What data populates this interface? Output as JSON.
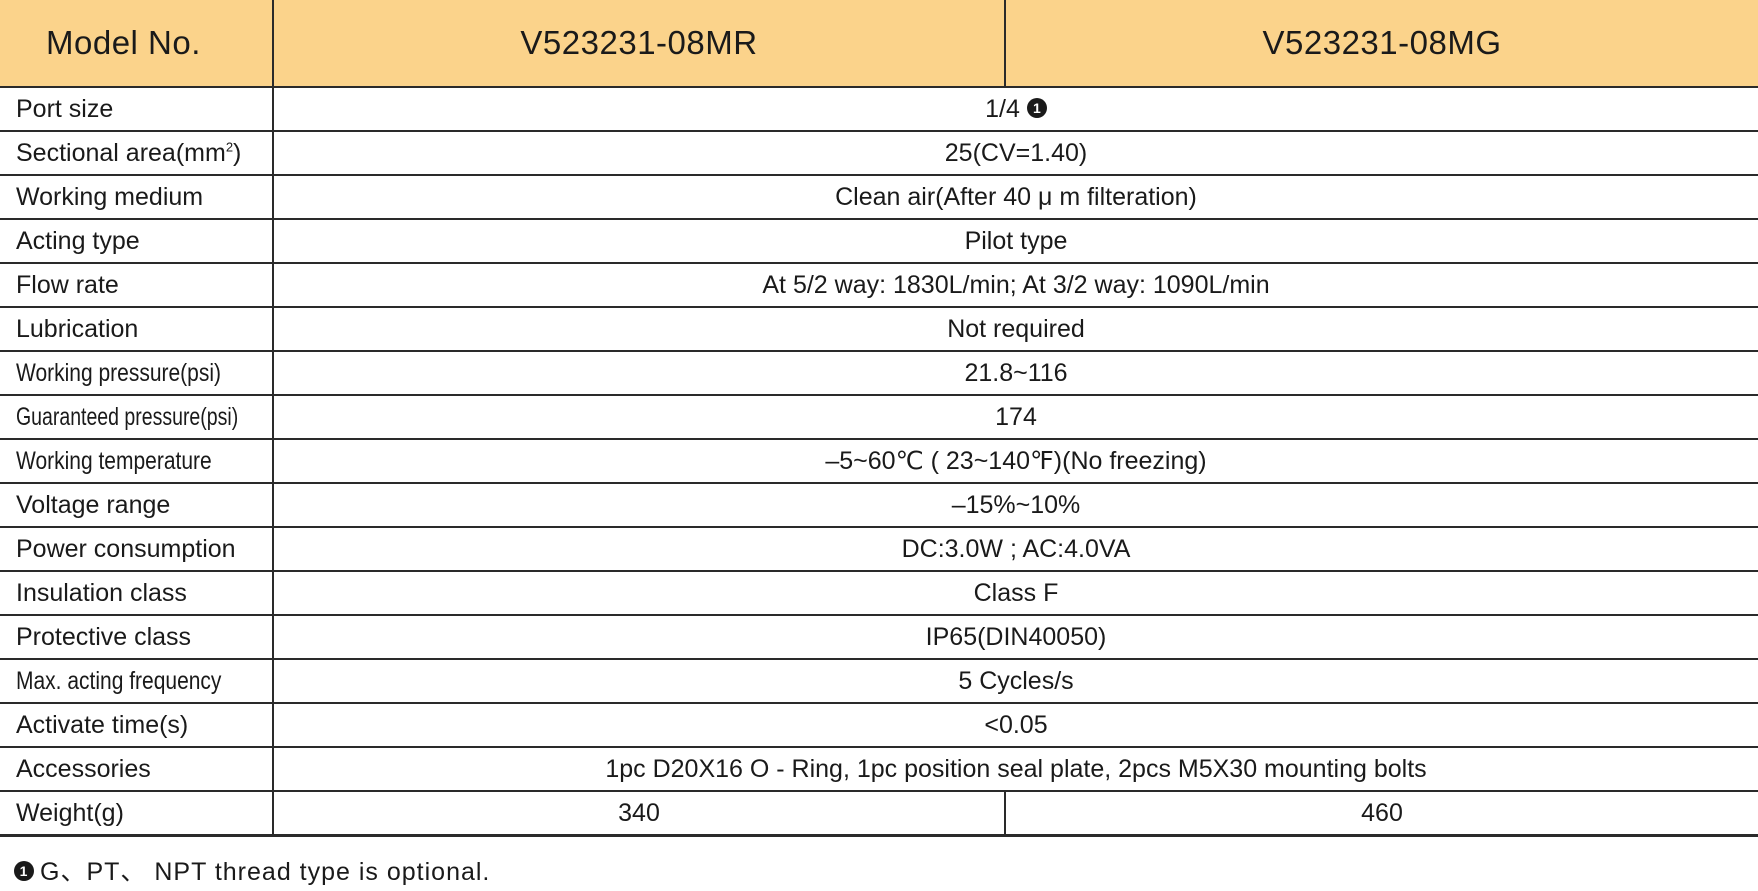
{
  "header": {
    "label": "Model No.",
    "model_a": "V523231-08MR",
    "model_b": "V523231-08MG"
  },
  "rows": [
    {
      "label": "Port size",
      "value": "1/4",
      "note_marker": "1"
    },
    {
      "label_main": "Sectional area(mm",
      "label_sup": "2",
      "label_tail": ")",
      "value": "25(CV=1.40)"
    },
    {
      "label": "Working medium",
      "value": "Clean air(After 40 μ m filteration)"
    },
    {
      "label": "Acting type",
      "value": "Pilot type"
    },
    {
      "label": "Flow rate",
      "value": "At 5/2 way: 1830L/min; At 3/2 way: 1090L/min"
    },
    {
      "label": "Lubrication",
      "value": "Not required"
    },
    {
      "label": "Working pressure(psi)",
      "value": "21.8~116"
    },
    {
      "label": "Guaranteed pressure(psi)",
      "value": "174"
    },
    {
      "label": "Working temperature",
      "value": "–5~60℃ ( 23~140℉)(No freezing)"
    },
    {
      "label": "Voltage range",
      "value": "–15%~10%"
    },
    {
      "label": "Power consumption",
      "value": "DC:3.0W ; AC:4.0VA"
    },
    {
      "label": "Insulation class",
      "value": "Class F"
    },
    {
      "label": "Protective class",
      "value": "IP65(DIN40050)"
    },
    {
      "label": "Max. acting frequency",
      "value": "5 Cycles/s"
    },
    {
      "label": "Activate time(s)",
      "value": "<0.05"
    },
    {
      "label": "Accessories",
      "value": "1pc D20X16 O - Ring, 1pc position seal plate, 2pcs M5X30 mounting bolts"
    },
    {
      "label": "Weight(g)",
      "value_a": "340",
      "value_b": "460"
    }
  ],
  "footnote": {
    "marker": "1",
    "text": "G、PT、 NPT  thread type is optional."
  },
  "colors": {
    "header_bg": "#fbd38b",
    "rule": "#2a2a2a",
    "text": "#1a1a1a"
  }
}
